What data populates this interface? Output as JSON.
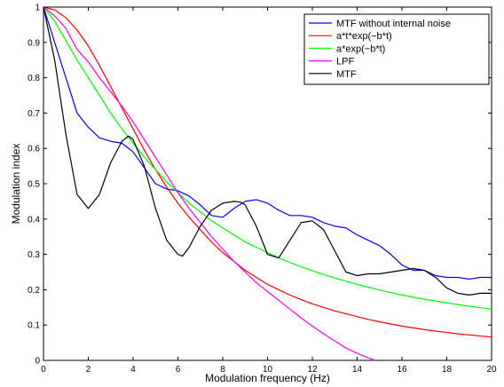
{
  "chart_data": {
    "type": "line",
    "title": "",
    "xlabel": "Modulation frequency (Hz)",
    "ylabel": "Modulation index",
    "xlim": [
      0,
      20
    ],
    "ylim": [
      0,
      1
    ],
    "grid": false,
    "legend_position": "top-right",
    "x_ticks": [
      0,
      2,
      4,
      6,
      8,
      10,
      12,
      14,
      16,
      18,
      20
    ],
    "y_ticks": [
      0,
      0.1,
      0.2,
      0.3,
      0.4,
      0.5,
      0.6,
      0.7,
      0.8,
      0.9,
      1
    ],
    "x_tick_labels": [
      "0",
      "2",
      "4",
      "6",
      "8",
      "10",
      "12",
      "14",
      "16",
      "18",
      "20"
    ],
    "y_tick_labels": [
      "0",
      "0.1",
      "0.2",
      "0.3",
      "0.4",
      "0.5",
      "0.6",
      "0.7",
      "0.8",
      "0.9",
      "1"
    ],
    "series": [
      {
        "name": "MTF without internal noise",
        "color": "#0000ff",
        "x": [
          0,
          0.5,
          1,
          1.5,
          2,
          2.5,
          3,
          3.5,
          4,
          4.5,
          5,
          5.5,
          6,
          6.5,
          7,
          7.5,
          8,
          8.5,
          9,
          9.5,
          10,
          10.5,
          11,
          11.5,
          12,
          12.5,
          13,
          13.5,
          14,
          14.5,
          15,
          15.5,
          16,
          16.5,
          17,
          17.5,
          18,
          18.5,
          19,
          19.5,
          20
        ],
        "y": [
          1.0,
          0.9,
          0.8,
          0.7,
          0.66,
          0.63,
          0.62,
          0.615,
          0.59,
          0.545,
          0.5,
          0.485,
          0.48,
          0.465,
          0.44,
          0.41,
          0.405,
          0.43,
          0.45,
          0.455,
          0.445,
          0.425,
          0.41,
          0.41,
          0.405,
          0.39,
          0.38,
          0.375,
          0.355,
          0.34,
          0.325,
          0.3,
          0.27,
          0.255,
          0.255,
          0.24,
          0.235,
          0.235,
          0.23,
          0.235,
          0.235
        ]
      },
      {
        "name": "a*t*exp(−b*t)",
        "color": "#ff0000",
        "x": [
          0,
          0.5,
          1,
          1.5,
          2,
          2.5,
          3,
          3.5,
          4,
          4.5,
          5,
          5.5,
          6,
          6.5,
          7,
          7.5,
          8,
          8.5,
          9,
          9.5,
          10,
          10.5,
          11,
          11.5,
          12,
          12.5,
          13,
          13.5,
          14,
          14.5,
          15,
          15.5,
          16,
          16.5,
          17,
          17.5,
          18,
          18.5,
          19,
          19.5,
          20
        ],
        "y": [
          1.0,
          0.992,
          0.97,
          0.935,
          0.89,
          0.835,
          0.775,
          0.715,
          0.655,
          0.595,
          0.54,
          0.49,
          0.445,
          0.405,
          0.37,
          0.335,
          0.305,
          0.28,
          0.255,
          0.235,
          0.215,
          0.2,
          0.185,
          0.172,
          0.16,
          0.15,
          0.14,
          0.132,
          0.124,
          0.116,
          0.109,
          0.103,
          0.097,
          0.092,
          0.087,
          0.083,
          0.079,
          0.075,
          0.072,
          0.069,
          0.066
        ]
      },
      {
        "name": "a*exp(−b*t)",
        "color": "#00ff00",
        "x": [
          0,
          0.5,
          1,
          1.5,
          2,
          2.5,
          3,
          3.5,
          4,
          4.5,
          5,
          5.5,
          6,
          6.5,
          7,
          7.5,
          8,
          8.5,
          9,
          9.5,
          10,
          10.5,
          11,
          11.5,
          12,
          12.5,
          13,
          13.5,
          14,
          14.5,
          15,
          15.5,
          16,
          16.5,
          17,
          17.5,
          18,
          18.5,
          19,
          19.5,
          20
        ],
        "y": [
          1.0,
          0.96,
          0.905,
          0.85,
          0.8,
          0.75,
          0.7,
          0.655,
          0.615,
          0.575,
          0.54,
          0.505,
          0.475,
          0.445,
          0.42,
          0.395,
          0.375,
          0.355,
          0.335,
          0.32,
          0.305,
          0.29,
          0.277,
          0.265,
          0.254,
          0.243,
          0.233,
          0.224,
          0.215,
          0.207,
          0.199,
          0.192,
          0.185,
          0.179,
          0.173,
          0.168,
          0.163,
          0.158,
          0.153,
          0.149,
          0.145
        ]
      },
      {
        "name": "LPF",
        "color": "#ff00ff",
        "x": [
          0,
          0.5,
          1,
          1.5,
          2,
          2.5,
          3,
          3.5,
          4,
          4.5,
          5,
          5.5,
          6,
          6.5,
          7,
          7.5,
          8,
          8.5,
          9,
          9.5,
          10,
          10.5,
          11,
          11.5,
          12,
          12.5,
          13,
          13.5,
          14,
          14.5,
          14.8
        ],
        "y": [
          1.0,
          0.975,
          0.94,
          0.88,
          0.845,
          0.8,
          0.76,
          0.72,
          0.675,
          0.625,
          0.575,
          0.525,
          0.475,
          0.43,
          0.39,
          0.35,
          0.315,
          0.28,
          0.25,
          0.22,
          0.195,
          0.17,
          0.145,
          0.12,
          0.097,
          0.075,
          0.055,
          0.035,
          0.02,
          0.007,
          0.0
        ]
      },
      {
        "name": "MTF",
        "color": "#000000",
        "x": [
          0,
          0.5,
          1,
          1.5,
          2,
          2.5,
          3,
          3.5,
          3.8,
          4,
          4.5,
          5,
          5.5,
          6,
          6.2,
          6.5,
          7,
          7.5,
          8,
          8.5,
          8.8,
          9,
          9.5,
          10,
          10.5,
          11,
          11.5,
          12,
          12.5,
          13,
          13.5,
          14,
          14.5,
          15,
          15.5,
          16,
          16.5,
          17,
          17.5,
          18,
          18.5,
          19,
          19.5,
          20
        ],
        "y": [
          1.0,
          0.85,
          0.64,
          0.47,
          0.43,
          0.47,
          0.56,
          0.62,
          0.635,
          0.625,
          0.55,
          0.43,
          0.34,
          0.3,
          0.295,
          0.32,
          0.38,
          0.425,
          0.445,
          0.45,
          0.448,
          0.44,
          0.38,
          0.3,
          0.29,
          0.34,
          0.39,
          0.395,
          0.37,
          0.31,
          0.25,
          0.24,
          0.245,
          0.245,
          0.25,
          0.255,
          0.26,
          0.255,
          0.235,
          0.205,
          0.19,
          0.185,
          0.19,
          0.19
        ]
      }
    ]
  }
}
